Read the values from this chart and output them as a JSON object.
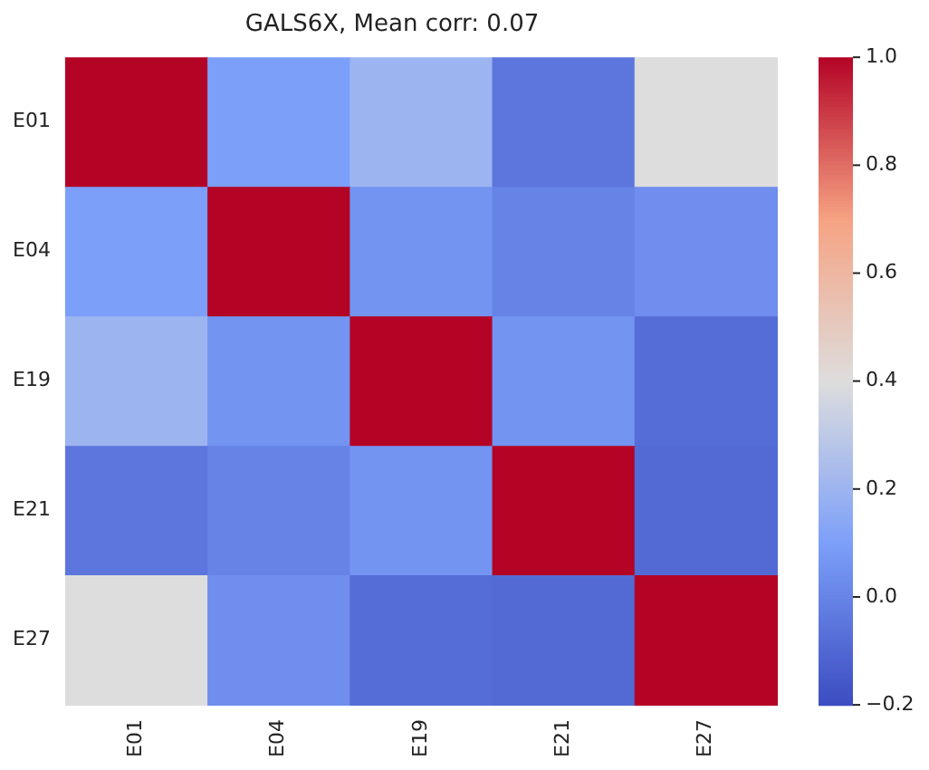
{
  "chart_data": {
    "type": "heatmap",
    "title": "GALS6X, Mean corr: 0.07",
    "categories": [
      "E01",
      "E04",
      "E19",
      "E21",
      "E27"
    ],
    "y_categories": [
      "E01",
      "E04",
      "E19",
      "E21",
      "E27"
    ],
    "cells": [
      [
        1.0,
        0.1,
        0.2,
        -0.05,
        0.4
      ],
      [
        0.1,
        1.0,
        0.06,
        0.0,
        0.04
      ],
      [
        0.2,
        0.06,
        1.0,
        0.06,
        -0.08
      ],
      [
        -0.05,
        0.0,
        0.06,
        1.0,
        -0.09
      ],
      [
        0.4,
        0.04,
        -0.08,
        -0.09,
        1.0
      ]
    ],
    "clim": [
      -0.2,
      1.0
    ],
    "cticks": [
      {
        "value": -0.2,
        "label": "−0.2"
      },
      {
        "value": 0,
        "label": "0.0"
      },
      0.2,
      0.4,
      0.6,
      0.8,
      {
        "value": 1,
        "label": "1.0"
      }
    ]
  }
}
